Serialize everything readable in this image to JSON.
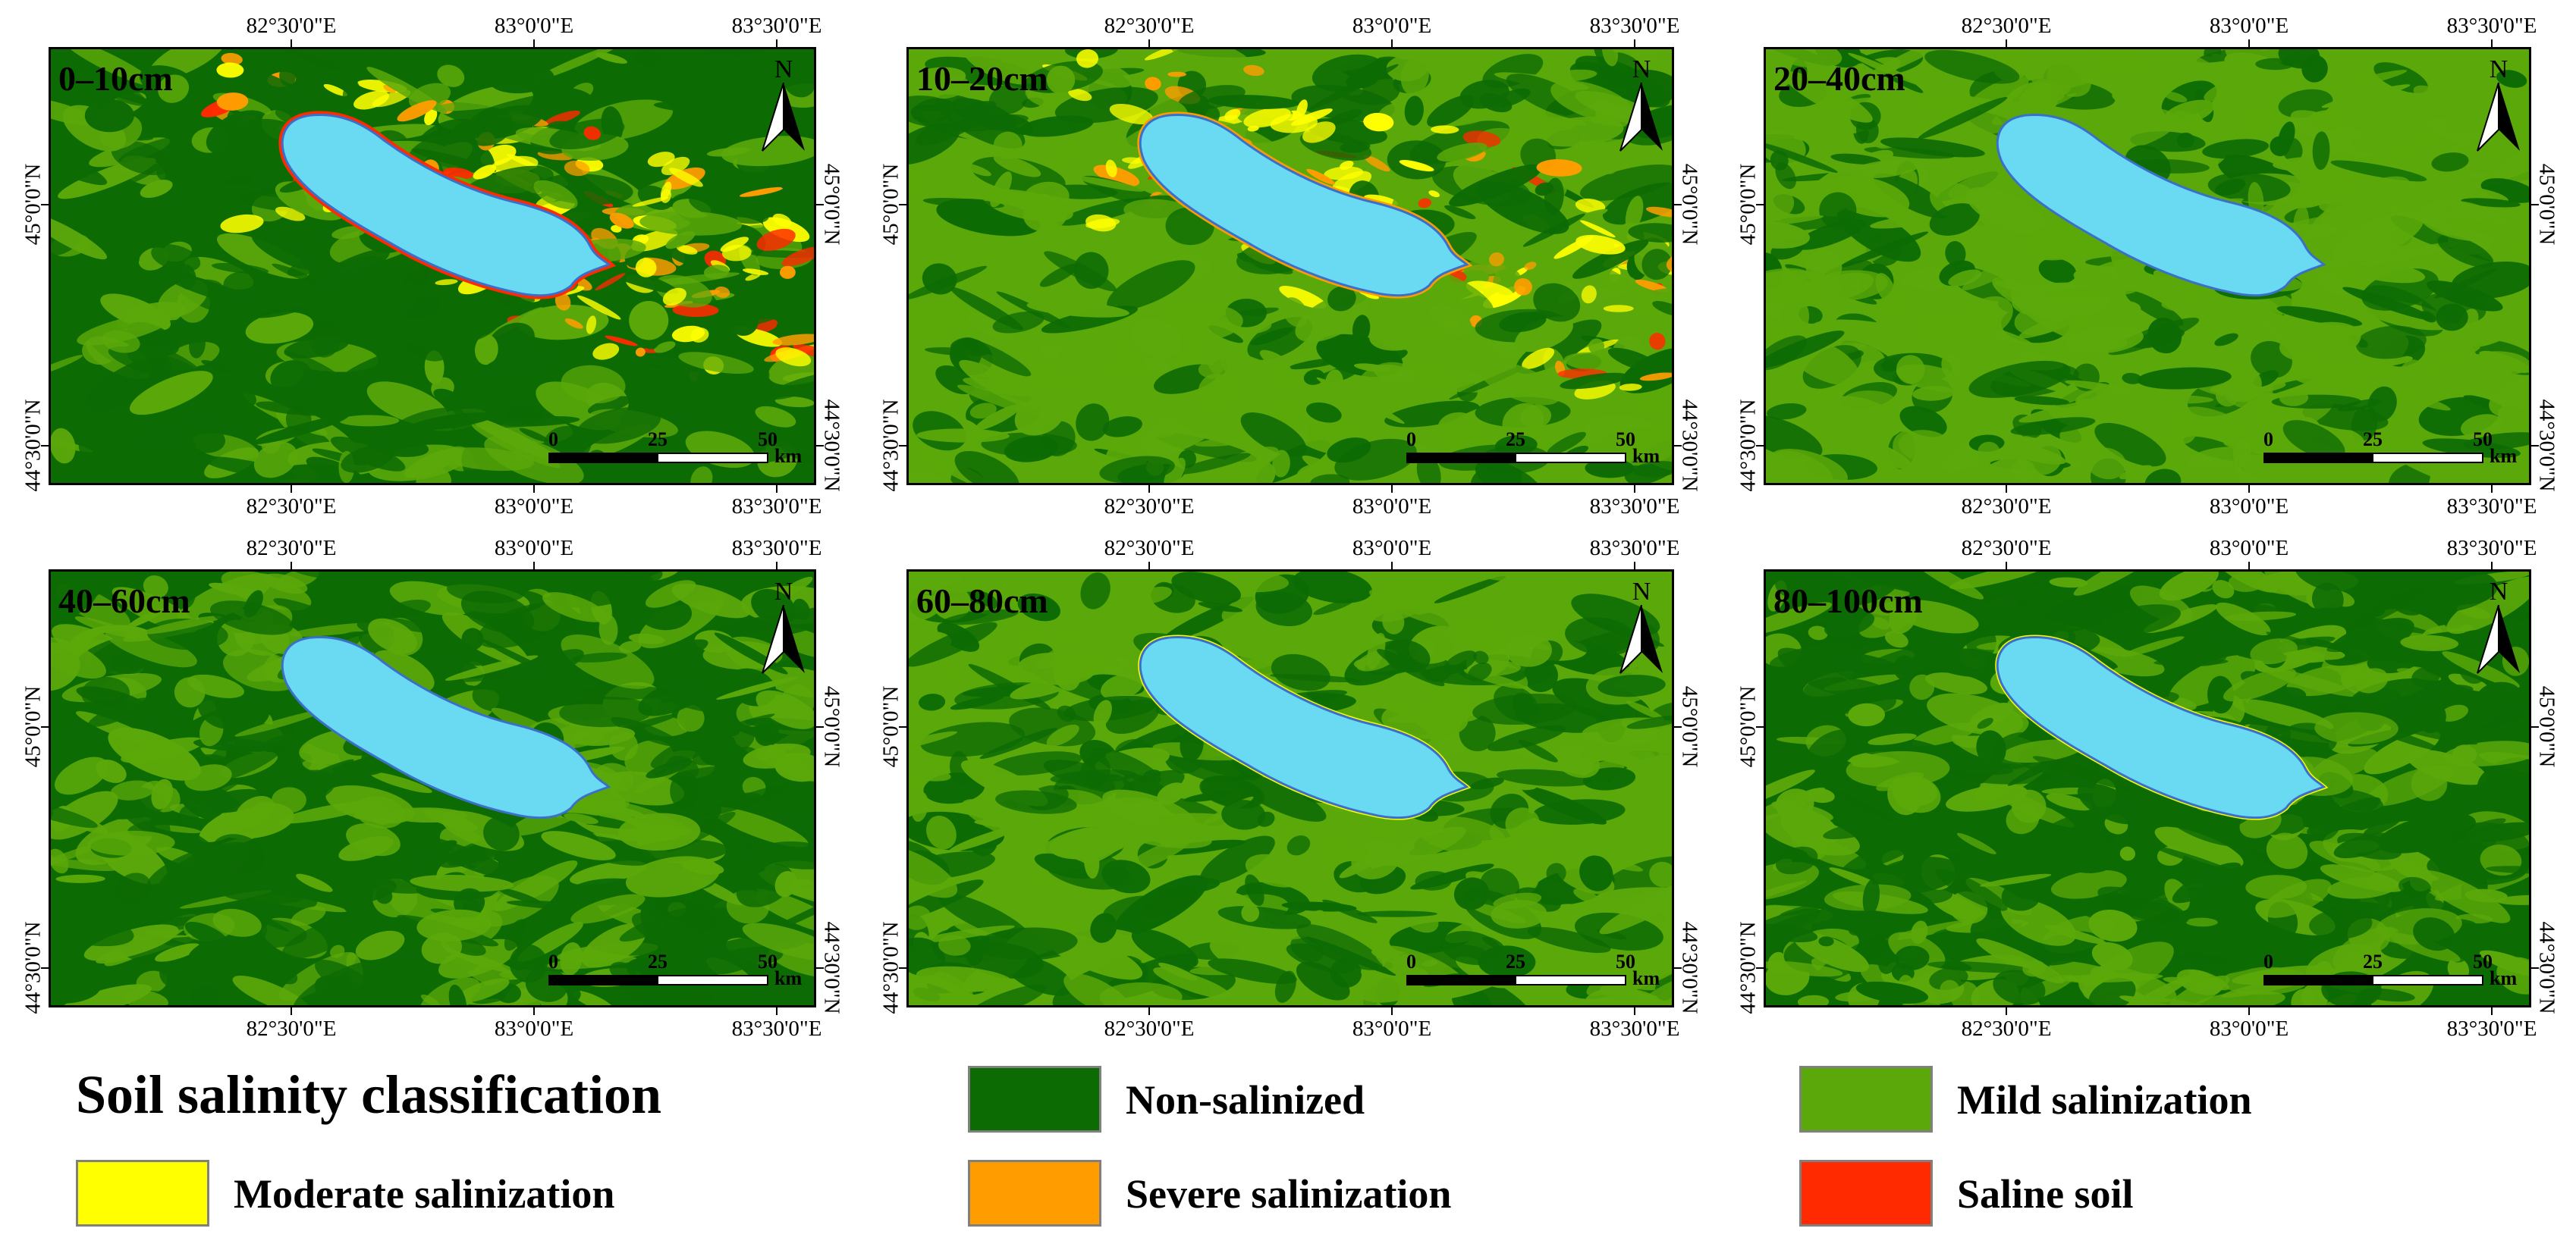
{
  "figure": {
    "panels": [
      {
        "id": "p1",
        "label": "0–10cm"
      },
      {
        "id": "p2",
        "label": "10–20cm"
      },
      {
        "id": "p3",
        "label": "20–40cm"
      },
      {
        "id": "p4",
        "label": "40–60cm"
      },
      {
        "id": "p5",
        "label": "60–80cm"
      },
      {
        "id": "p6",
        "label": "80–100cm"
      }
    ],
    "longitude_labels": [
      "82°30'0\"E",
      "83°0'0\"E",
      "83°30'0\"E"
    ],
    "latitude_labels": [
      "45°0'0\"N",
      "44°30'0\"N"
    ],
    "north_arrow": "N",
    "scale_bar": {
      "ticks": [
        "0",
        "25",
        "50"
      ],
      "unit": "km"
    }
  },
  "legend": {
    "title": "Soil salinity classification",
    "items": [
      {
        "label": "Non-salinized",
        "color": "#0d6b04"
      },
      {
        "label": "Mild salinization",
        "color": "#5ba80a"
      },
      {
        "label": "Moderate salinization",
        "color": "#ffff00"
      },
      {
        "label": "Severe salinization",
        "color": "#ff9d00"
      },
      {
        "label": "Saline soil",
        "color": "#ff2a00"
      }
    ]
  },
  "colors": {
    "lake": "#6ad9f2",
    "lake_outline": "#3a70c8",
    "non_salinized": "#0d6b04",
    "mild": "#5ba80a",
    "moderate": "#ffff00",
    "severe": "#ff9d00",
    "saline": "#ff2a00"
  }
}
